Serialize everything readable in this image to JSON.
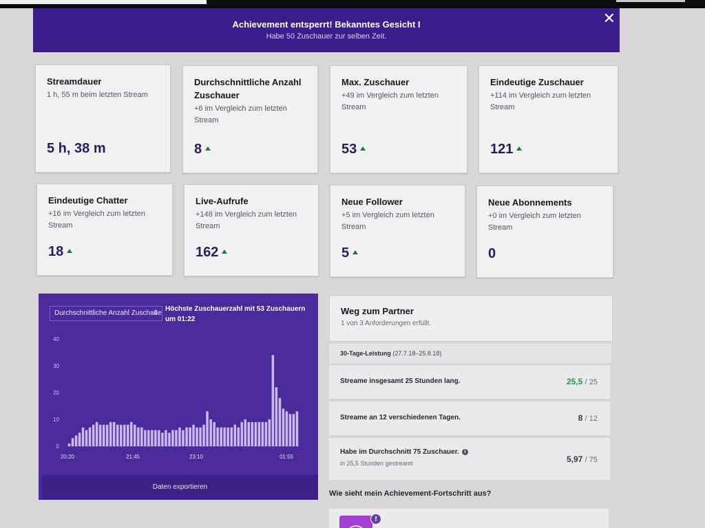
{
  "banner": {
    "title": "Achievement entsperrt! Bekanntes Gesicht I",
    "subtitle": "Habe 50 Zuschauer zur selben Zeit."
  },
  "stats": [
    {
      "title": "Streamdauer",
      "sub": "1 h, 55 m beim letzten Stream",
      "value": "5 h, 38 m",
      "up": false
    },
    {
      "title": "Durchschnittliche Anzahl Zuschauer",
      "sub": "+6 im Vergleich zum letzten Stream",
      "value": "8",
      "up": true
    },
    {
      "title": "Max. Zuschauer",
      "sub": "+49 im Vergleich zum letzten Stream",
      "value": "53",
      "up": true
    },
    {
      "title": "Eindeutige Zuschauer",
      "sub": "+114 im Vergleich zum letzten Stream",
      "value": "121",
      "up": true
    },
    {
      "title": "Eindeutige Chatter",
      "sub": "+16 im Vergleich zum letzten Stream",
      "value": "18",
      "up": true
    },
    {
      "title": "Live-Aufrufe",
      "sub": "+148 im Vergleich zum letzten Stream",
      "value": "162",
      "up": true
    },
    {
      "title": "Neue Follower",
      "sub": "+5 im Vergleich zum letzten Stream",
      "value": "5",
      "up": true
    },
    {
      "title": "Neue Abonnements",
      "sub": "+0 im Vergleich zum letzten Stream",
      "value": "0",
      "up": false
    }
  ],
  "chart_panel": {
    "select_value": "Durchschnittliche Anzahl Zuschauer",
    "peak_text": "Höchste Zuschauerzahl mit 53 Zuschauern um 01:22",
    "export_label": "Daten exportieren"
  },
  "chart_data": {
    "type": "bar",
    "title": "",
    "xlabel": "",
    "ylabel": "",
    "ylim": [
      0,
      40
    ],
    "y_ticks": [
      "0",
      "10",
      "20",
      "30",
      "40"
    ],
    "x_ticks": [
      "20:20",
      "21:45",
      "23:10",
      "01:55"
    ],
    "grid": false,
    "values": [
      1,
      3,
      4,
      5,
      7,
      6,
      7,
      8,
      9,
      8,
      8,
      8,
      9,
      9,
      8,
      8,
      8,
      8,
      9,
      8,
      7,
      7,
      6,
      6,
      6,
      6,
      6,
      5,
      6,
      5,
      6,
      6,
      7,
      6,
      7,
      7,
      8,
      7,
      7,
      8,
      13,
      10,
      9,
      7,
      7,
      7,
      7,
      7,
      8,
      7,
      9,
      10,
      9,
      9,
      9,
      9,
      9,
      9,
      10,
      34,
      22,
      18,
      14,
      13,
      12,
      12,
      13
    ],
    "bar_color": "#c9bbf0"
  },
  "partner": {
    "title": "Weg zum Partner",
    "subtitle": "1 von 3 Anforderungen erfüllt.",
    "period_label": "30-Tage-Leistung",
    "period_range": "(27.7.18–25.8.18)",
    "requirements": [
      {
        "label": "Streame insgesamt 25 Stunden lang.",
        "value": "25,5",
        "total": "/ 25",
        "met": true
      },
      {
        "label": "Streame an 12 verschiedenen Tagen.",
        "value": "8",
        "total": "/ 12",
        "met": false
      },
      {
        "label": "Habe im Durchschnitt 75 Zuschauer.",
        "sub": "in 25,5 Stunden gestreamt",
        "value": "5,97",
        "total": "/ 75",
        "met": false
      }
    ],
    "achievement_question": "Wie sieht mein Achievement-Fortschritt aus?"
  },
  "colors": {
    "banner": "#3a1f8c",
    "chart_bg": "#4b2a9b",
    "accent_up": "#1e7a3a",
    "good": "#1f9a4a"
  },
  "icons": {
    "close": "close-icon",
    "select_chevron": "chevron-updown-icon",
    "arrow_up": "arrow-up-icon",
    "info": "info-icon"
  }
}
